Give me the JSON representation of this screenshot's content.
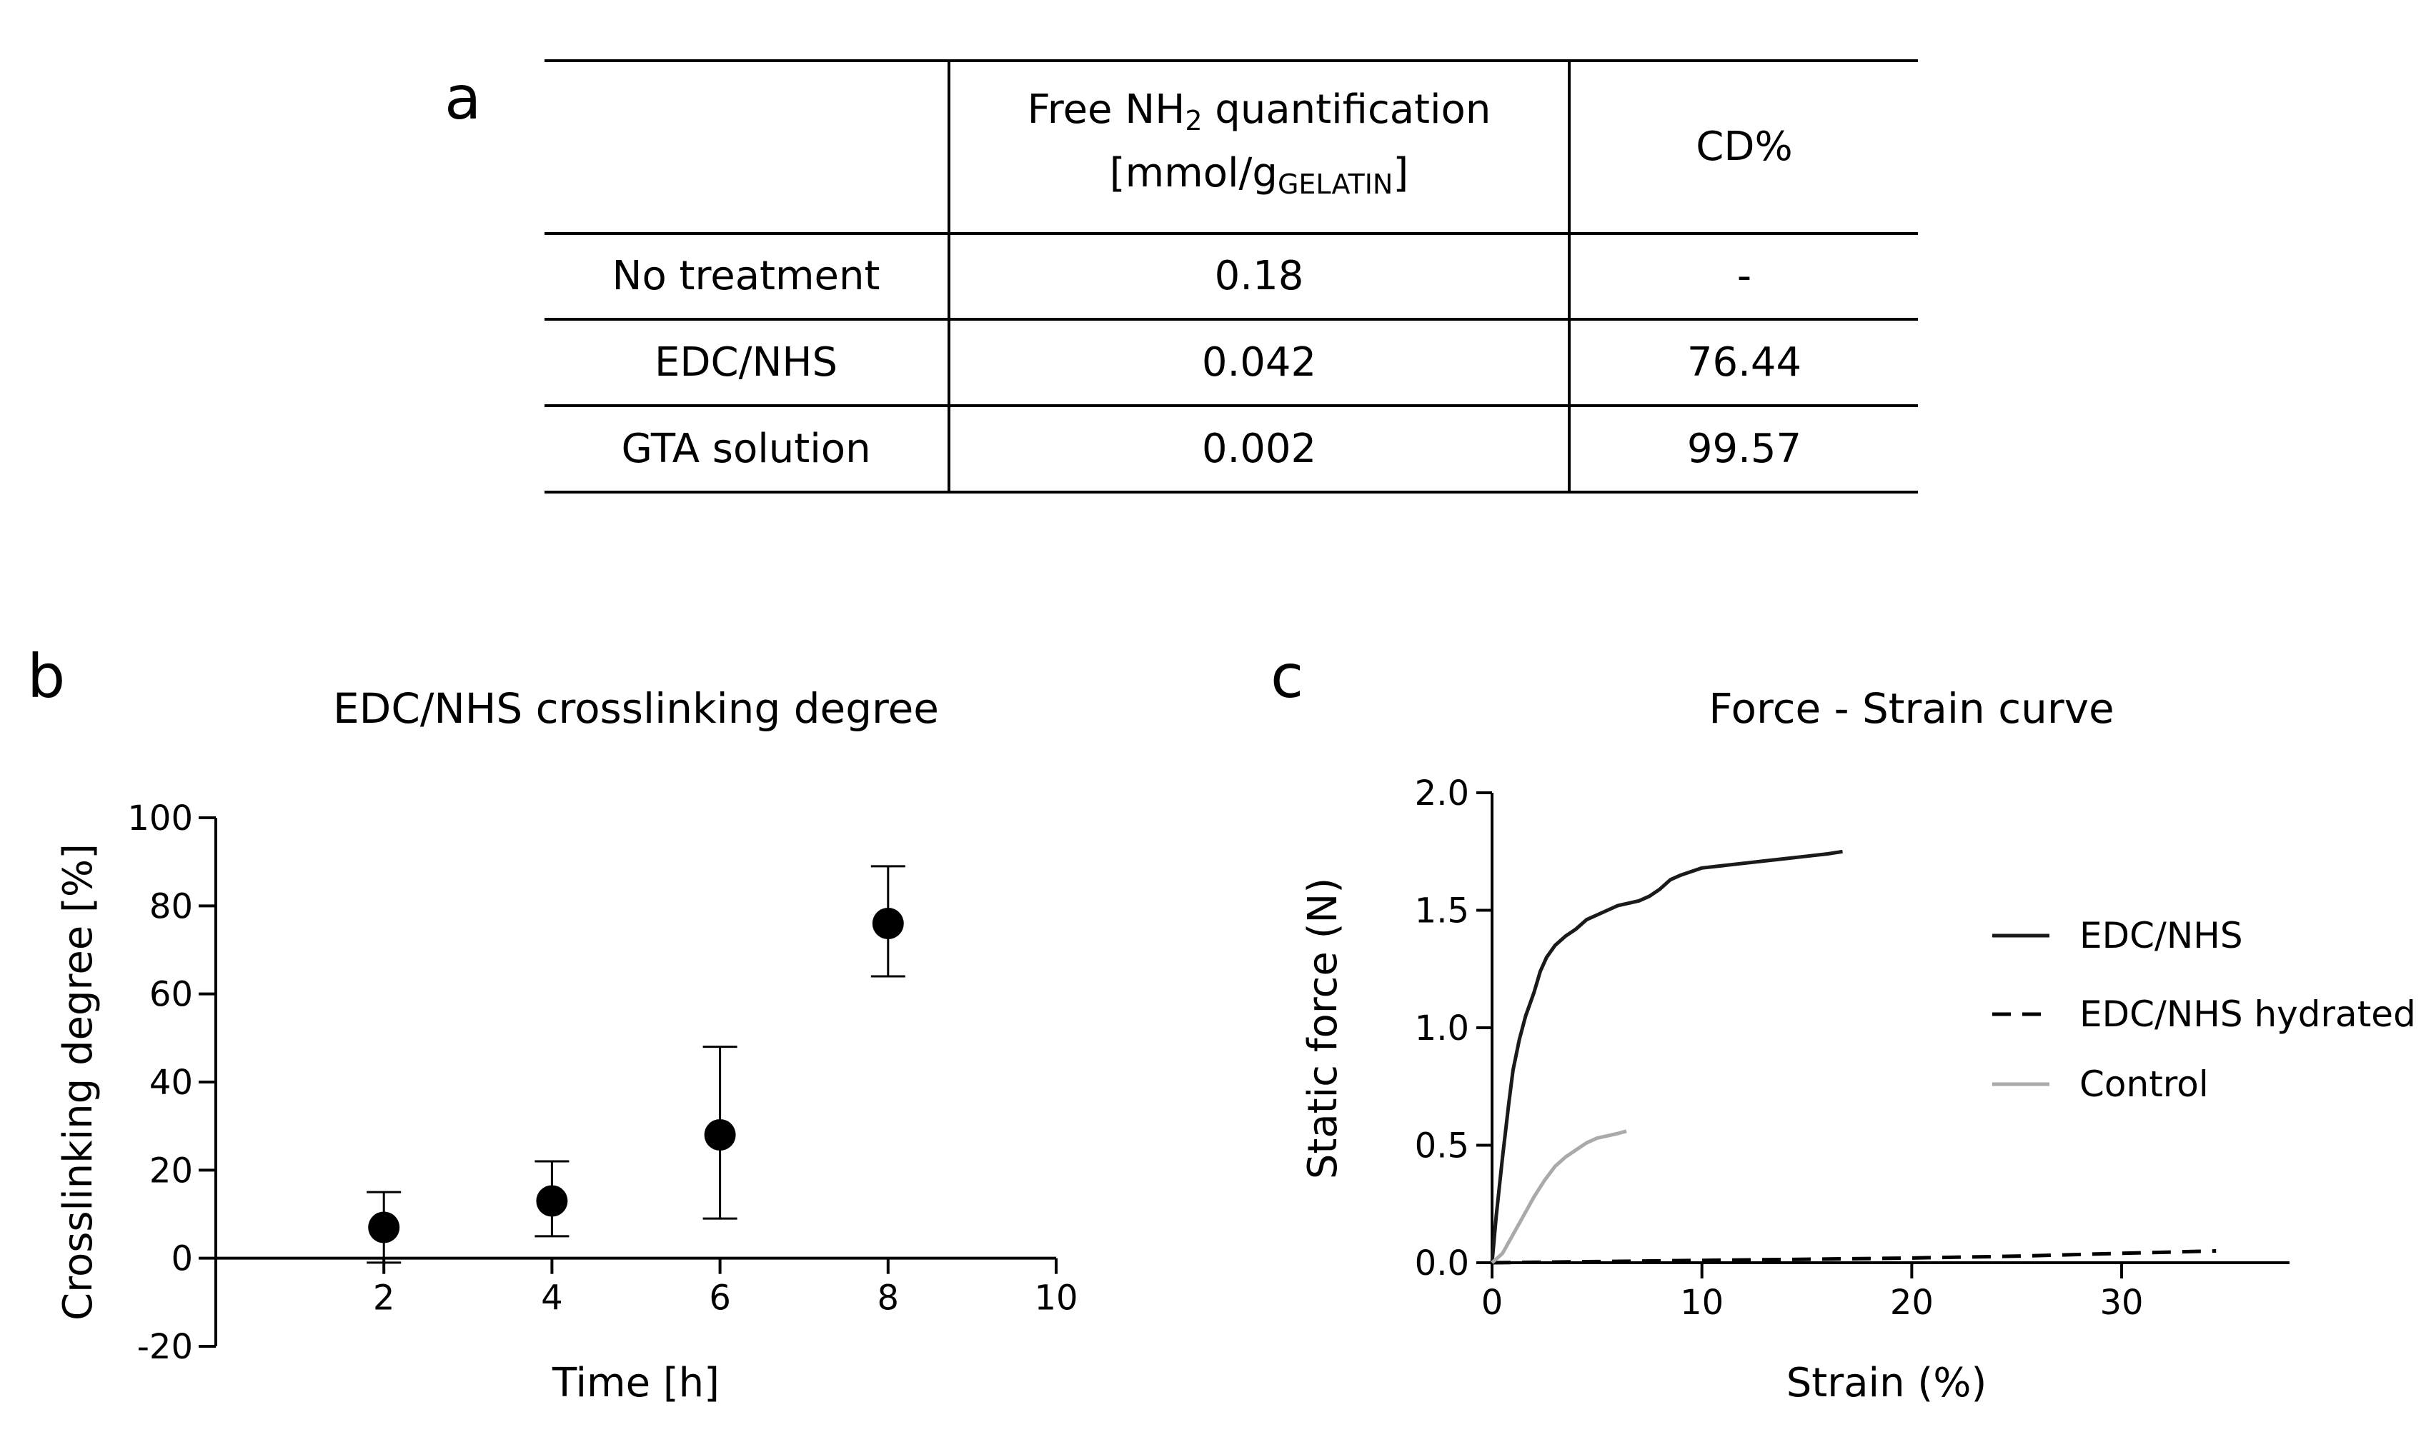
{
  "panels": {
    "a": "a",
    "b": "b",
    "c": "c"
  },
  "table": {
    "header": {
      "col1": "",
      "col2_line1_pre": "Free NH",
      "col2_line1_sub": "2",
      "col2_line1_post": " quantification",
      "col2_line2_pre": "[mmol/g",
      "col2_line2_sub": "GELATIN",
      "col2_line2_post": "]",
      "col3": "CD%"
    },
    "rows": [
      {
        "label": "No treatment",
        "free_nh2": "0.18",
        "cd": "-"
      },
      {
        "label": "EDC/NHS",
        "free_nh2": "0.042",
        "cd": "76.44"
      },
      {
        "label": "GTA solution",
        "free_nh2": "0.002",
        "cd": "99.57"
      }
    ]
  },
  "chart_data": [
    {
      "type": "scatter",
      "title": "EDC/NHS crosslinking degree",
      "xlabel": "Time [h]",
      "ylabel": "Crosslinking degree [%]",
      "xlim": [
        0,
        10
      ],
      "ylim": [
        -20,
        100
      ],
      "xticks": [
        2,
        4,
        6,
        8,
        10
      ],
      "yticks": [
        -20,
        0,
        20,
        40,
        60,
        80,
        100
      ],
      "points": [
        {
          "x": 2,
          "y": 7,
          "err_low": -1,
          "err_high": 15
        },
        {
          "x": 4,
          "y": 13,
          "err_low": 5,
          "err_high": 22
        },
        {
          "x": 6,
          "y": 28,
          "err_low": 9,
          "err_high": 48
        },
        {
          "x": 8,
          "y": 76,
          "err_low": 64,
          "err_high": 89
        }
      ],
      "marker_color": "#000000"
    },
    {
      "type": "line",
      "title": "Force - Strain curve",
      "xlabel": "Strain (%)",
      "ylabel": "Static force (N)",
      "xlim": [
        0,
        38
      ],
      "ylim": [
        0,
        2.0
      ],
      "xticks": [
        0,
        10,
        20,
        30
      ],
      "yticks": [
        0.0,
        0.5,
        1.0,
        1.5,
        2.0
      ],
      "ytick_labels": [
        "0.0",
        "0.5",
        "1.0",
        "1.5",
        "2.0"
      ],
      "legend_position": "right",
      "series": [
        {
          "name": "EDC/NHS",
          "color": "#1a1a1a",
          "dash": "solid",
          "x": [
            0,
            0.2,
            0.5,
            0.8,
            1.0,
            1.3,
            1.6,
            2.0,
            2.3,
            2.6,
            3.0,
            3.5,
            4.0,
            4.5,
            5.0,
            5.5,
            6.0,
            7.0,
            7.5,
            8.0,
            8.5,
            9.0,
            10.0,
            11.0,
            12.0,
            13.0,
            14.0,
            15.0,
            16.0,
            16.7
          ],
          "y": [
            0,
            0.2,
            0.45,
            0.68,
            0.82,
            0.95,
            1.05,
            1.15,
            1.24,
            1.3,
            1.35,
            1.39,
            1.42,
            1.46,
            1.48,
            1.5,
            1.52,
            1.54,
            1.56,
            1.59,
            1.63,
            1.65,
            1.68,
            1.69,
            1.7,
            1.71,
            1.72,
            1.73,
            1.74,
            1.75
          ]
        },
        {
          "name": "EDC/NHS hydrated",
          "color": "#000000",
          "dash": "dashed",
          "x": [
            0,
            5,
            10,
            15,
            20,
            25,
            30,
            34.5
          ],
          "y": [
            0,
            0.005,
            0.01,
            0.015,
            0.02,
            0.028,
            0.04,
            0.05
          ]
        },
        {
          "name": "Control",
          "color": "#aaaaaa",
          "dash": "solid",
          "x": [
            0,
            0.5,
            1.0,
            1.5,
            2.0,
            2.5,
            3.0,
            3.5,
            4.0,
            4.5,
            5.0,
            5.5,
            6.0,
            6.4
          ],
          "y": [
            0,
            0.04,
            0.12,
            0.2,
            0.28,
            0.35,
            0.41,
            0.45,
            0.48,
            0.51,
            0.53,
            0.54,
            0.55,
            0.56
          ]
        }
      ]
    }
  ]
}
